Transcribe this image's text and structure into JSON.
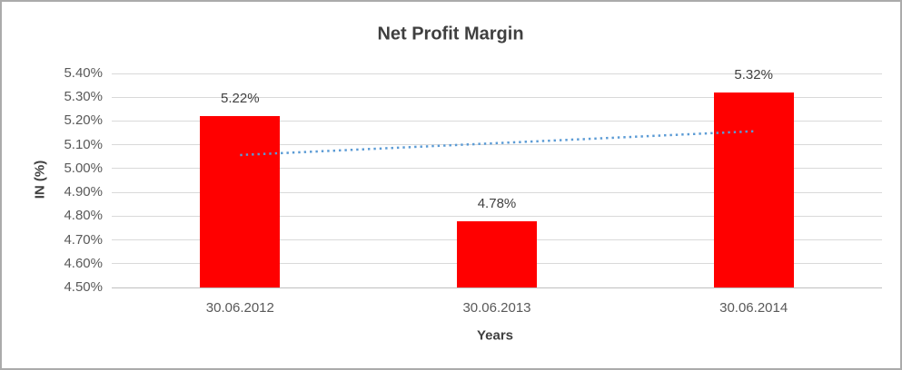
{
  "chart_data": {
    "type": "bar",
    "title": "Net Profit Margin",
    "xlabel": "Years",
    "ylabel": "IN (%)",
    "categories": [
      "30.06.2012",
      "30.06.2013",
      "30.06.2014"
    ],
    "values": [
      5.22,
      4.78,
      5.32
    ],
    "value_labels": [
      "5.22%",
      "4.78%",
      "5.32%"
    ],
    "ylim": [
      4.5,
      5.4
    ],
    "ytick_step": 0.1,
    "ytick_labels": [
      "4.50%",
      "4.60%",
      "4.70%",
      "4.80%",
      "4.90%",
      "5.00%",
      "5.10%",
      "5.20%",
      "5.30%",
      "5.40%"
    ],
    "grid": true,
    "legend": "none",
    "bar_color": "#FF0000",
    "trendline": {
      "style": "dotted",
      "color": "#5B9BD5",
      "y_start": 5.057,
      "y_end": 5.157
    }
  },
  "colors": {
    "title": "#3F3F3F",
    "axis_title": "#404040",
    "tick_label": "#595959",
    "data_label": "#404040",
    "gridline": "#D9D9D9",
    "axis_line": "#BFBFBF",
    "frame_border": "#ABABAB",
    "background": "#FFFFFF"
  }
}
